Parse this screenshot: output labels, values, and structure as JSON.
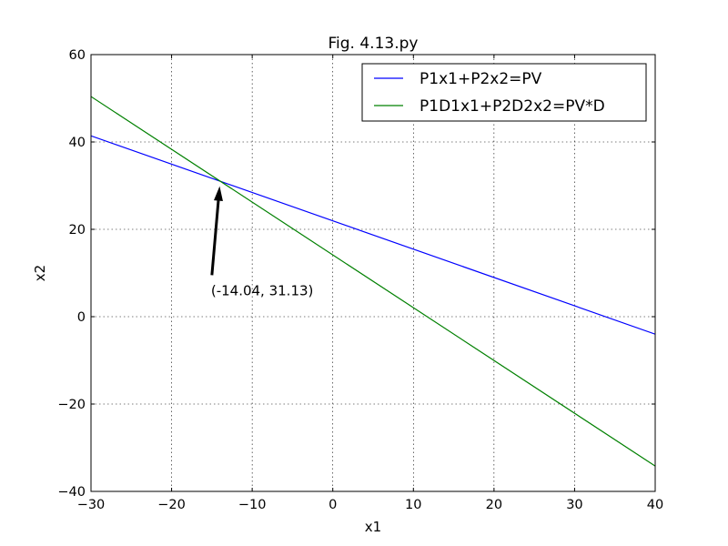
{
  "chart_data": {
    "type": "line",
    "title": "Fig. 4.13.py",
    "xlabel": "x1",
    "ylabel": "x2",
    "xlim": [
      -30,
      40
    ],
    "ylim": [
      -40,
      60
    ],
    "xticks": [
      -30,
      -20,
      -10,
      0,
      10,
      20,
      30,
      40
    ],
    "yticks": [
      -40,
      -20,
      0,
      20,
      40,
      60
    ],
    "xtick_labels": [
      "−30",
      "−20",
      "−10",
      "0",
      "10",
      "20",
      "30",
      "40"
    ],
    "ytick_labels": [
      "−40",
      "−20",
      "0",
      "20",
      "40",
      "60"
    ],
    "grid": true,
    "legend_position": "top-right",
    "series": [
      {
        "name": "P1x1+P2x2=PV",
        "color": "#0000ff",
        "x": [
          -30,
          40
        ],
        "y": [
          41.4,
          -4.0
        ]
      },
      {
        "name": "P1D1x1+P2D2x2=PV*D",
        "color": "#008000",
        "x": [
          -30,
          40
        ],
        "y": [
          50.4,
          -34.2
        ]
      }
    ],
    "annotations": [
      {
        "text": "(-14.04, 31.13)",
        "point": [
          -14.04,
          31.13
        ],
        "text_at": [
          -15,
          9.5
        ]
      }
    ]
  }
}
